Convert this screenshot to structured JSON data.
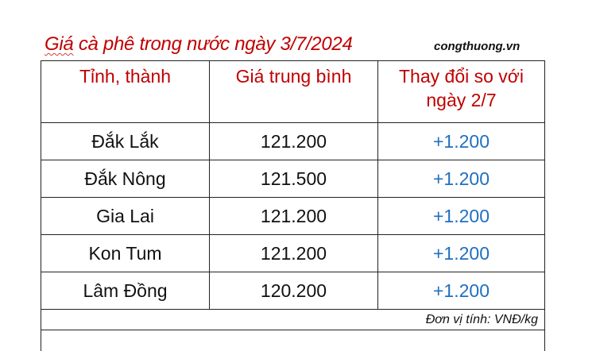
{
  "title": {
    "prefix": "Giá",
    "rest": " cà phê trong nước ngày 3/7/2024"
  },
  "source": "congthuong.vn",
  "headers": [
    "Tỉnh, thành",
    "Giá trung bình",
    "Thay đổi so với ngày 2/7"
  ],
  "rows": [
    {
      "province": "Đắk Lắk",
      "price": "121.200",
      "change": "+1.200"
    },
    {
      "province": "Đắk Nông",
      "price": "121.500",
      "change": "+1.200"
    },
    {
      "province": "Gia Lai",
      "price": "121.200",
      "change": "+1.200"
    },
    {
      "province": "Kon Tum",
      "price": "121.200",
      "change": "+1.200"
    },
    {
      "province": "Lâm Đồng",
      "price": "120.200",
      "change": "+1.200"
    }
  ],
  "unit": "Đơn vị tính: VNĐ/kg",
  "colors": {
    "header": "#c00000",
    "change": "#1f6fc0"
  }
}
